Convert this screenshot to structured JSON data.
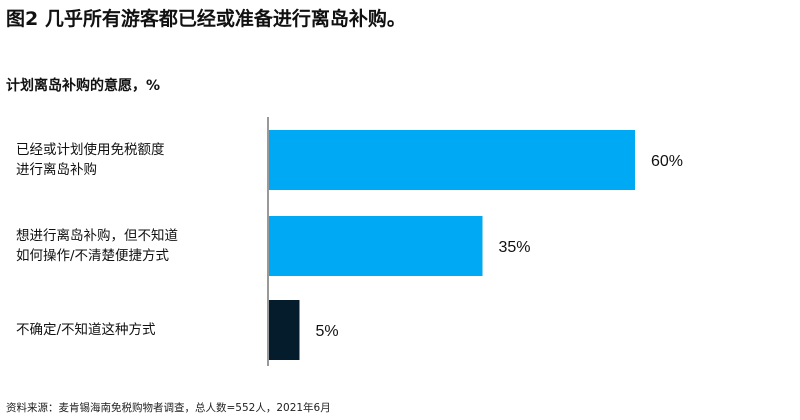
{
  "chart_data": {
    "type": "bar",
    "orientation": "horizontal",
    "title": "图2 几乎所有游客都已经或准备进行离岛补购。",
    "subtitle": "计划离岛补购的意愿，%",
    "categories": [
      [
        "已经或计划使用免税额度",
        "进行离岛补购"
      ],
      [
        "想进行离岛补购，但不知道",
        "如何操作/不清楚便捷方式"
      ],
      [
        "不确定/不知道这种方式"
      ]
    ],
    "values": [
      60,
      35,
      5
    ],
    "value_labels": [
      "60%",
      "35%",
      "5%"
    ],
    "bar_colors": [
      "#00a9f4",
      "#00a9f4",
      "#051c2c"
    ],
    "xlim": [
      0,
      100
    ],
    "grid": false,
    "source": "资料来源：麦肯锡海南免税购物者调查，总人数=552人，2021年6月"
  }
}
